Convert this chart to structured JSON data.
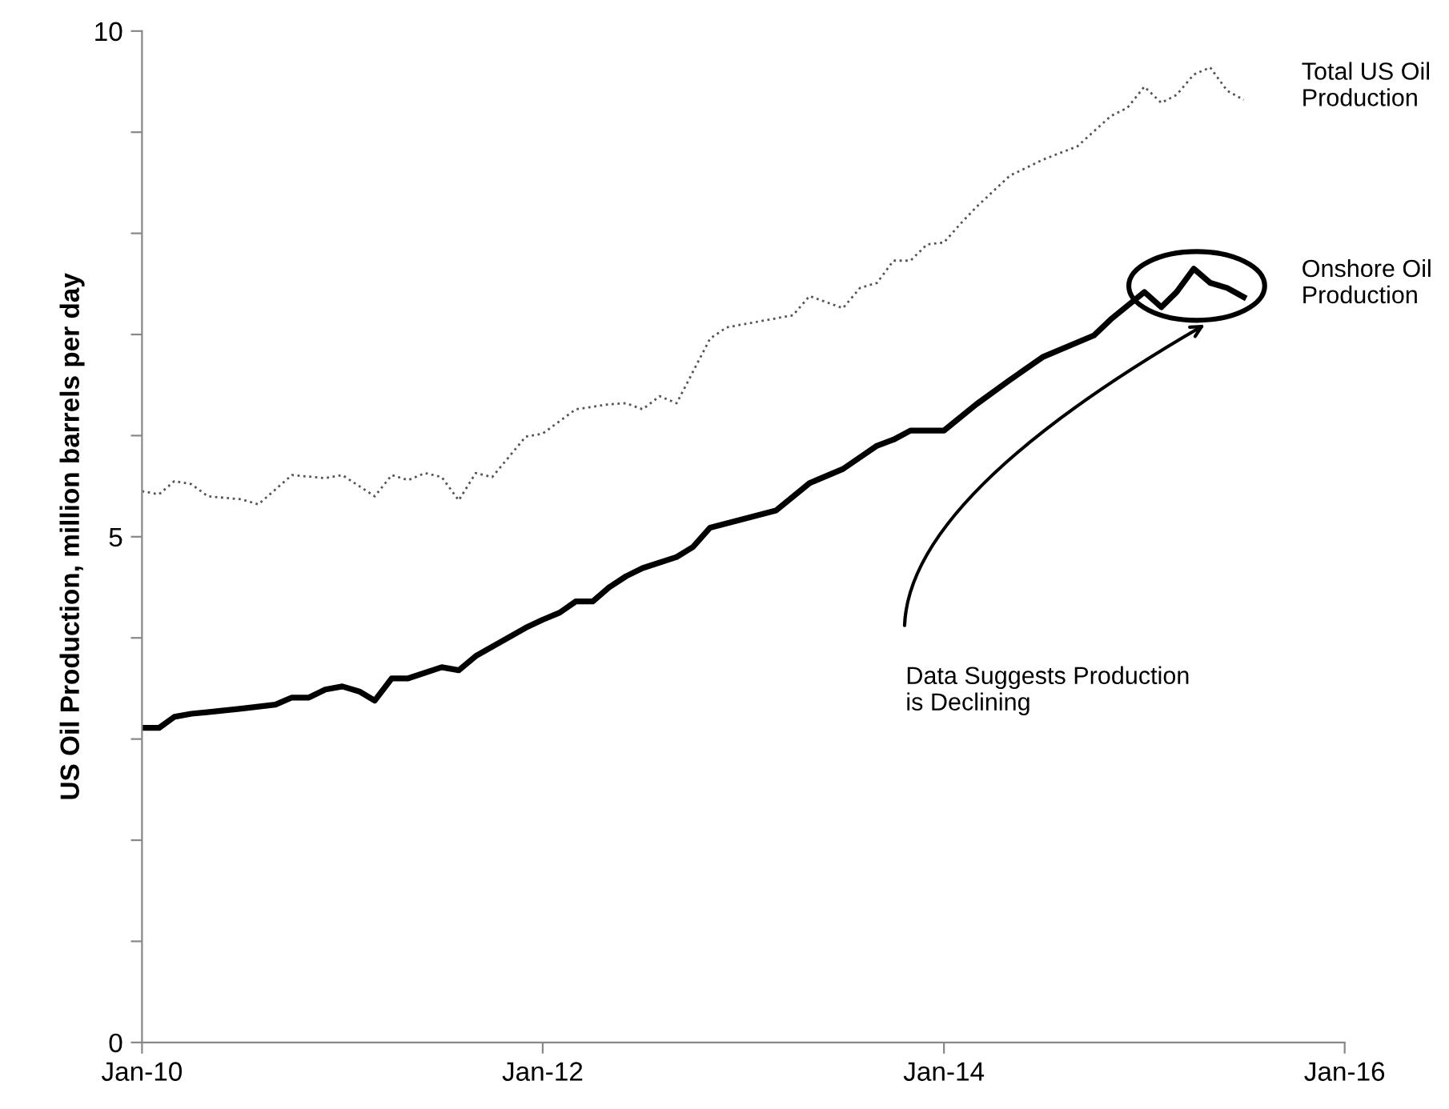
{
  "chart_data": {
    "type": "line",
    "ylabel": "US Oil Production, million barrels per day",
    "xlim": [
      "2010-01",
      "2016-01"
    ],
    "xticks": [
      {
        "value": "2010-01",
        "label": "Jan-10"
      },
      {
        "value": "2012-01",
        "label": "Jan-12"
      },
      {
        "value": "2014-01",
        "label": "Jan-14"
      },
      {
        "value": "2016-01",
        "label": "Jan-16"
      }
    ],
    "ylim": [
      0,
      10
    ],
    "yticks": [
      0,
      {
        "value": 1,
        "label": null
      },
      {
        "value": 2,
        "label": null
      },
      {
        "value": 3,
        "label": null
      },
      {
        "value": 4,
        "label": null
      },
      5,
      {
        "value": 6,
        "label": null
      },
      {
        "value": 7,
        "label": null
      },
      {
        "value": 8,
        "label": null
      },
      {
        "value": 9,
        "label": null
      },
      10
    ],
    "grid": false,
    "legend": false,
    "series": [
      {
        "name": "Total US Oil Production",
        "color": "#555555",
        "line_style": "dotted",
        "x": [
          "2010-01",
          "2010-02",
          "2010-03",
          "2010-04",
          "2010-05",
          "2010-07",
          "2010-08",
          "2010-10",
          "2010-12",
          "2011-01",
          "2011-03",
          "2011-04",
          "2011-05",
          "2011-06",
          "2011-07",
          "2011-08",
          "2011-09",
          "2011-10",
          "2011-12",
          "2012-01",
          "2012-03",
          "2012-05",
          "2012-06",
          "2012-07",
          "2012-08",
          "2012-09",
          "2012-11",
          "2012-12",
          "2013-04",
          "2013-05",
          "2013-07",
          "2013-08",
          "2013-09",
          "2013-10",
          "2013-11",
          "2013-12",
          "2014-01",
          "2014-02",
          "2014-03",
          "2014-05",
          "2014-07",
          "2014-09",
          "2014-11",
          "2014-12",
          "2015-01",
          "2015-02",
          "2015-03",
          "2015-04",
          "2015-05",
          "2015-06",
          "2015-07"
        ],
        "values": [
          5.45,
          5.42,
          5.55,
          5.52,
          5.4,
          5.37,
          5.32,
          5.61,
          5.58,
          5.61,
          5.4,
          5.61,
          5.56,
          5.63,
          5.59,
          5.36,
          5.63,
          5.59,
          5.99,
          6.02,
          6.26,
          6.31,
          6.32,
          6.26,
          6.39,
          6.32,
          6.96,
          7.07,
          7.19,
          7.38,
          7.26,
          7.46,
          7.51,
          7.73,
          7.73,
          7.89,
          7.91,
          8.1,
          8.26,
          8.57,
          8.73,
          8.86,
          9.16,
          9.24,
          9.45,
          9.29,
          9.37,
          9.57,
          9.64,
          9.41,
          9.32
        ]
      },
      {
        "name": "Onshore Oil Production",
        "color": "#000000",
        "line_style": "solid",
        "x": [
          "2010-01",
          "2010-02",
          "2010-03",
          "2010-04",
          "2010-07",
          "2010-09",
          "2010-10",
          "2010-11",
          "2010-12",
          "2011-01",
          "2011-02",
          "2011-03",
          "2011-04",
          "2011-05",
          "2011-07",
          "2011-08",
          "2011-09",
          "2011-12",
          "2012-01",
          "2012-02",
          "2012-03",
          "2012-04",
          "2012-05",
          "2012-06",
          "2012-07",
          "2012-09",
          "2012-10",
          "2012-11",
          "2013-03",
          "2013-05",
          "2013-07",
          "2013-09",
          "2013-10",
          "2013-11",
          "2014-01",
          "2014-03",
          "2014-05",
          "2014-07",
          "2014-10",
          "2014-11",
          "2015-01",
          "2015-02",
          "2015-03",
          "2015-04",
          "2015-05",
          "2015-06",
          "2015-07"
        ],
        "values": [
          3.11,
          3.11,
          3.22,
          3.25,
          3.3,
          3.34,
          3.41,
          3.41,
          3.49,
          3.52,
          3.47,
          3.38,
          3.6,
          3.6,
          3.71,
          3.68,
          3.82,
          4.1,
          4.18,
          4.25,
          4.36,
          4.36,
          4.5,
          4.61,
          4.69,
          4.8,
          4.9,
          5.09,
          5.26,
          5.53,
          5.67,
          5.9,
          5.96,
          6.05,
          6.05,
          6.31,
          6.55,
          6.78,
          6.99,
          7.15,
          7.42,
          7.27,
          7.42,
          7.65,
          7.51,
          7.46,
          7.37
        ]
      }
    ],
    "annotations": [
      "Data Suggests Production is Declining"
    ]
  }
}
